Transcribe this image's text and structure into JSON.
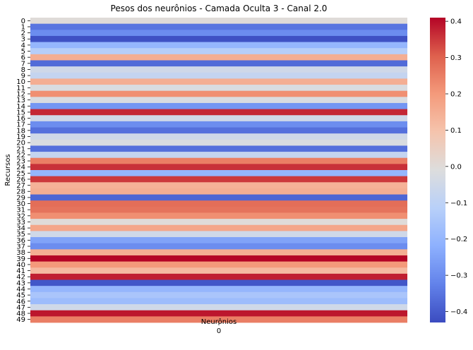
{
  "chart_data": {
    "type": "heatmap",
    "title": "Pesos dos neurônios - Camada Oculta 3 - Canal 2.0",
    "xlabel": "Neurônios",
    "ylabel": "Recursos",
    "x_categories": [
      "0"
    ],
    "y_categories": [
      "0",
      "1",
      "2",
      "3",
      "4",
      "5",
      "6",
      "7",
      "8",
      "9",
      "10",
      "11",
      "12",
      "13",
      "14",
      "15",
      "16",
      "17",
      "18",
      "19",
      "20",
      "21",
      "22",
      "23",
      "24",
      "25",
      "26",
      "27",
      "28",
      "29",
      "30",
      "31",
      "32",
      "33",
      "34",
      "35",
      "36",
      "37",
      "38",
      "39",
      "40",
      "41",
      "42",
      "43",
      "44",
      "45",
      "46",
      "47",
      "48",
      "49"
    ],
    "values": [
      0.0,
      -0.35,
      -0.3,
      -0.42,
      -0.2,
      -0.12,
      0.15,
      -0.37,
      -0.05,
      -0.08,
      0.15,
      -0.02,
      0.22,
      -0.02,
      -0.28,
      0.37,
      -0.05,
      -0.3,
      -0.36,
      -0.05,
      -0.02,
      -0.36,
      -0.08,
      0.25,
      0.36,
      -0.2,
      0.35,
      0.14,
      0.15,
      -0.38,
      0.28,
      0.27,
      0.22,
      0.0,
      0.17,
      -0.05,
      -0.25,
      -0.3,
      0.15,
      0.41,
      0.2,
      0.12,
      0.38,
      -0.41,
      -0.2,
      -0.15,
      -0.18,
      -0.05,
      0.39,
      0.25
    ],
    "colormap": "coolwarm",
    "vmin": -0.43,
    "vmax": 0.41,
    "colorbar_ticks": [
      "0.4",
      "0.3",
      "0.2",
      "0.1",
      "0.0",
      "−0.1",
      "−0.2",
      "−0.3",
      "−0.4"
    ],
    "colorbar_tick_values": [
      0.4,
      0.3,
      0.2,
      0.1,
      0.0,
      -0.1,
      -0.2,
      -0.3,
      -0.4
    ],
    "grid": false
  }
}
